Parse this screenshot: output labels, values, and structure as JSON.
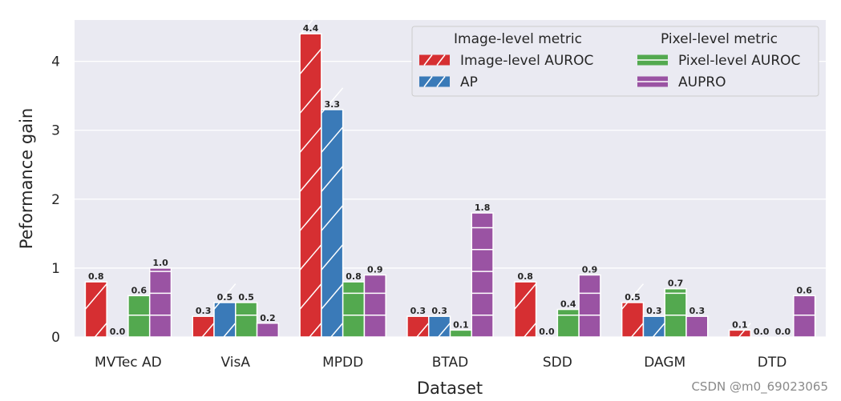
{
  "chart_data": {
    "type": "bar",
    "title": "",
    "xlabel": "Dataset",
    "ylabel": "Peformance gain",
    "ylim": [
      0,
      4.6
    ],
    "yticks": [
      0,
      1,
      2,
      3,
      4
    ],
    "grid": true,
    "legend_position": "top-right",
    "categories": [
      "MVTec AD",
      "VisA",
      "MPDD",
      "BTAD",
      "SDD",
      "DAGM",
      "DTD"
    ],
    "legend_groups": [
      {
        "title": "Image-level metric",
        "series": [
          "Image-level AUROC",
          "AP"
        ]
      },
      {
        "title": "Pixel-level metric",
        "series": [
          "Pixel-level AUROC",
          "AUPRO"
        ]
      }
    ],
    "series": [
      {
        "name": "Image-level AUROC",
        "color": "#d62f32",
        "hatch": "diagonal",
        "values": [
          0.8,
          0.3,
          4.4,
          0.3,
          0.8,
          0.5,
          0.1
        ],
        "labels": [
          "0.8",
          "0.3",
          "4.4",
          "0.3",
          "0.8",
          "0.5",
          "0.1"
        ]
      },
      {
        "name": "AP",
        "color": "#3a7ab8",
        "hatch": "diagonal",
        "values": [
          0.0,
          0.5,
          3.3,
          0.3,
          0.0,
          0.3,
          0.0
        ],
        "labels": [
          "0.0",
          "0.5",
          "3.3",
          "0.3",
          "0.0",
          "0.3",
          "0.0"
        ]
      },
      {
        "name": "Pixel-level AUROC",
        "color": "#53a94f",
        "hatch": "horizontal",
        "values": [
          0.6,
          0.5,
          0.8,
          0.1,
          0.4,
          0.7,
          0.0
        ],
        "labels": [
          "0.6",
          "0.5",
          "0.8",
          "0.1",
          "0.4",
          "0.7",
          "0.0"
        ]
      },
      {
        "name": "AUPRO",
        "color": "#9a53a3",
        "hatch": "horizontal",
        "values": [
          1.0,
          0.2,
          0.9,
          1.8,
          0.9,
          0.3,
          0.6
        ],
        "labels": [
          "1.0",
          "0.2",
          "0.9",
          "1.8",
          "0.9",
          "0.3",
          "0.6"
        ]
      }
    ]
  },
  "watermark": "CSDN @m0_69023065"
}
